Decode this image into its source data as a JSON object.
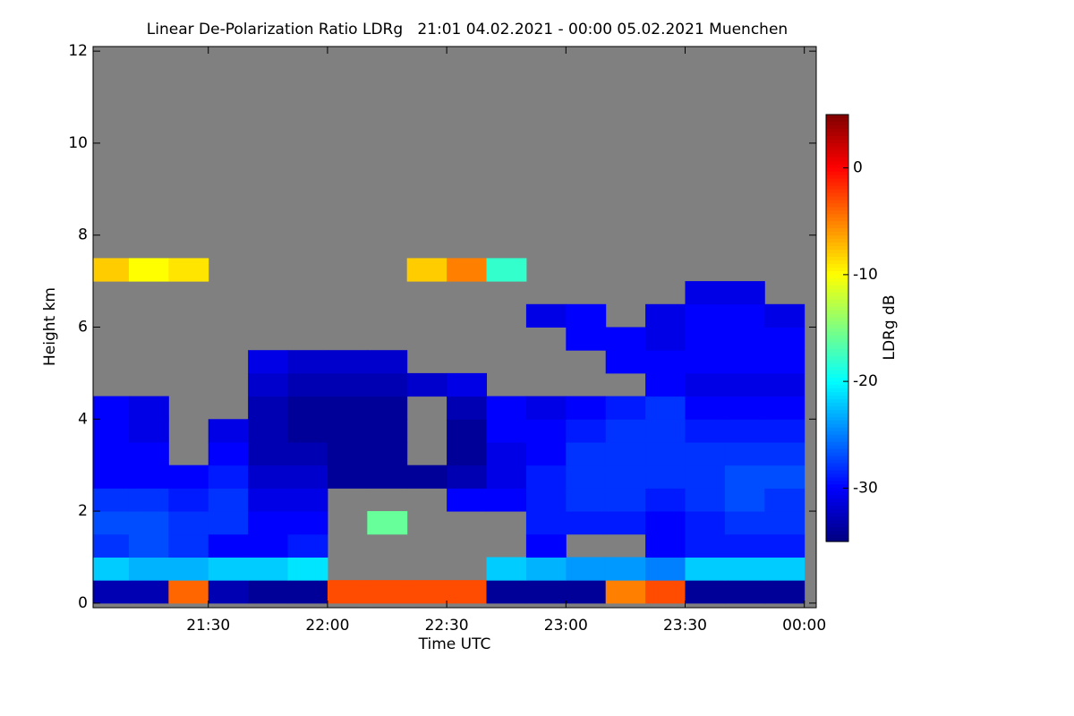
{
  "chart_data": {
    "type": "heatmap",
    "title": "Linear De-Polarization Ratio LDRg   21:01 04.02.2021 - 00:00 05.02.2021 Muenchen",
    "xlabel": "Time UTC",
    "ylabel": "Height km",
    "colorbar_label": "LDRg dB",
    "xlim": [
      21.0167,
      24.05
    ],
    "ylim": [
      -0.1,
      12.1
    ],
    "xticks": [
      {
        "value": 21.5,
        "label": "21:30"
      },
      {
        "value": 22.0,
        "label": "22:00"
      },
      {
        "value": 22.5,
        "label": "22:30"
      },
      {
        "value": 23.0,
        "label": "23:00"
      },
      {
        "value": 23.5,
        "label": "23:30"
      },
      {
        "value": 24.0,
        "label": "00:00"
      }
    ],
    "yticks": [
      0,
      2,
      4,
      6,
      8,
      10,
      12
    ],
    "clim": [
      -35,
      5
    ],
    "cticks": [
      0,
      -10,
      -20,
      -30
    ],
    "xbins": [
      21.0167,
      21.1667,
      21.3333,
      21.5,
      21.6667,
      21.8333,
      22.0,
      22.1667,
      22.3333,
      22.5,
      22.6667,
      22.8333,
      23.0,
      23.1667,
      23.3333,
      23.5,
      23.6667,
      23.8333,
      24.0
    ],
    "ybins": [
      0,
      0.5,
      1,
      1.5,
      2,
      2.5,
      3,
      3.5,
      4,
      4.5,
      5,
      5.5,
      6,
      6.5,
      7,
      7.5
    ],
    "values": [
      [
        -33,
        -33,
        -4,
        -33,
        -34,
        -34,
        -3,
        -3,
        -3,
        -3,
        -34,
        -34,
        -34,
        -5,
        -3,
        -34,
        -34,
        -34
      ],
      [
        -22,
        -23,
        -23,
        -22,
        -22,
        -21,
        null,
        null,
        null,
        null,
        -22,
        -23,
        -24,
        -24,
        -25,
        -22,
        -22,
        -22
      ],
      [
        -28,
        -27,
        -28,
        -30,
        -30,
        -29,
        null,
        null,
        null,
        null,
        null,
        -30,
        null,
        null,
        -30,
        -29,
        -29,
        -29
      ],
      [
        -27,
        -27,
        -28,
        -28,
        -30,
        -30,
        null,
        -16,
        null,
        null,
        null,
        -29,
        -29,
        -29,
        -30,
        -29,
        -28,
        -28
      ],
      [
        -28,
        -28,
        -29,
        -28,
        -31,
        -31,
        null,
        null,
        null,
        -30,
        -30,
        -29,
        -28,
        -28,
        -29,
        -28,
        -27,
        -28
      ],
      [
        -30,
        -30,
        -30,
        -29,
        -32,
        -32,
        -34,
        -34,
        -34,
        -33,
        -31,
        -29,
        -28,
        -28,
        -28,
        -28,
        -27,
        -27
      ],
      [
        -30,
        -30,
        null,
        -30,
        -33,
        -33,
        -34,
        -34,
        null,
        -34,
        -31,
        -30,
        -28,
        -28,
        -28,
        -28,
        -28,
        -28
      ],
      [
        -30,
        -31,
        null,
        -31,
        -33,
        -34,
        -34,
        -34,
        null,
        -34,
        -30,
        -30,
        -29,
        -28,
        -28,
        -29,
        -29,
        -29
      ],
      [
        -30,
        -31,
        null,
        null,
        -33,
        -34,
        -34,
        -34,
        null,
        -33,
        -30,
        -31,
        -30,
        -29,
        -28,
        -30,
        -30,
        -30
      ],
      [
        null,
        null,
        null,
        null,
        -32,
        -33,
        -33,
        -33,
        -32,
        -31,
        null,
        null,
        null,
        null,
        -30,
        -31,
        -31,
        -31
      ],
      [
        null,
        null,
        null,
        null,
        -31,
        -32,
        -32,
        -32,
        null,
        null,
        null,
        null,
        null,
        -30,
        -30,
        -30,
        -30,
        -30
      ],
      [
        null,
        null,
        null,
        null,
        null,
        null,
        null,
        null,
        null,
        null,
        null,
        null,
        -30,
        -30,
        -31,
        -30,
        -30,
        -30
      ],
      [
        null,
        null,
        null,
        null,
        null,
        null,
        null,
        null,
        null,
        null,
        null,
        -31,
        -30,
        null,
        -31,
        -30,
        -30,
        -31
      ],
      [
        null,
        null,
        null,
        null,
        null,
        null,
        null,
        null,
        null,
        null,
        null,
        null,
        null,
        null,
        null,
        -31,
        -31,
        null
      ],
      [
        -8,
        -10,
        -9,
        null,
        null,
        null,
        null,
        null,
        -8,
        -5,
        -18,
        null,
        null,
        null,
        null,
        null,
        null,
        null
      ]
    ],
    "background": "#808080"
  }
}
